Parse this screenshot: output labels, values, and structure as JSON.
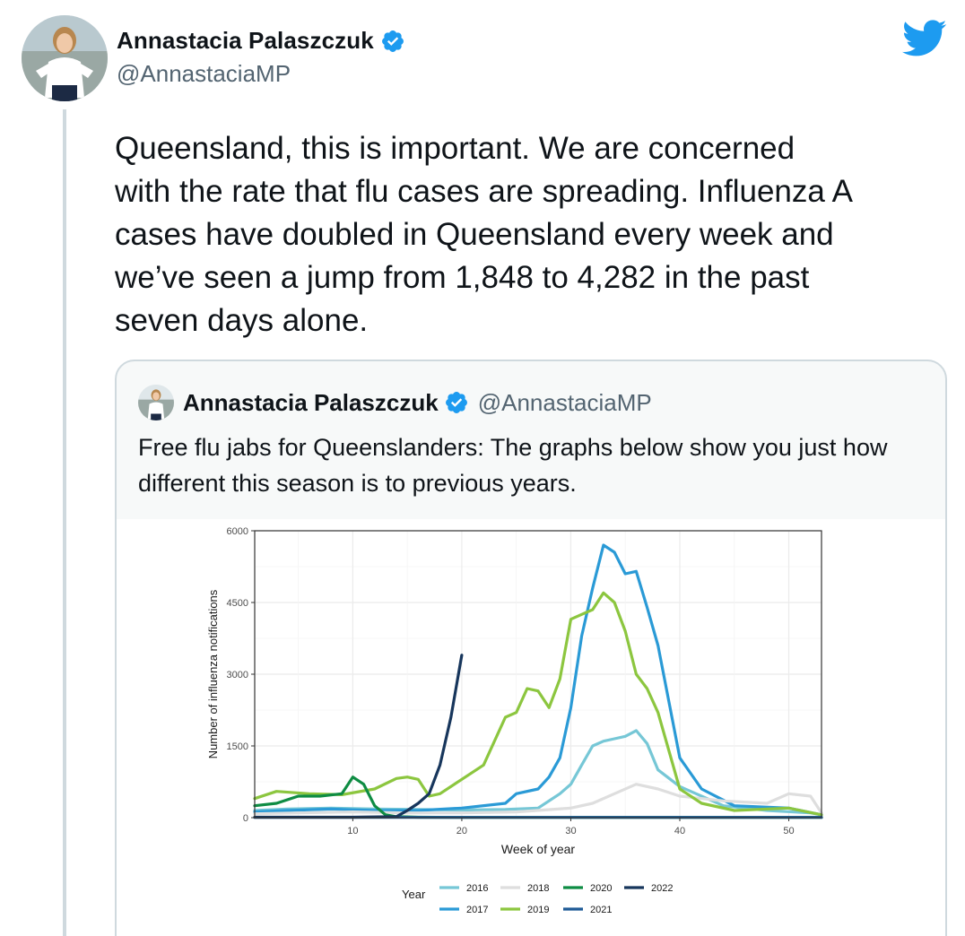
{
  "tweet": {
    "author_name": "Annastacia Palaszczuk",
    "handle": "@AnnastaciaMP",
    "text": "Queensland, this is important. We are concerned\nwith the rate that flu cases are spreading. Influenza A\ncases have doubled in Queensland every week and\nwe’ve seen a jump from 1,848 to 4,282 in the past\nseven days alone."
  },
  "quoted_tweet": {
    "author_name": "Annastacia Palaszczuk",
    "handle": "@AnnastaciaMP",
    "text": "Free flu jabs for Queenslanders: The graphs below show you just how different this season is to previous years."
  },
  "icons": {
    "brand": "twitter-bird-icon",
    "verified": "verified-badge-icon"
  },
  "colors": {
    "twitter_blue": "#1d9bf0",
    "text_primary": "#0f1419",
    "text_secondary": "#536471",
    "border": "#cfd9de"
  },
  "chart_data": {
    "type": "line",
    "xlabel": "Week of year",
    "ylabel": "Number of influenza notifications",
    "xlim": [
      1,
      53
    ],
    "ylim": [
      0,
      6000
    ],
    "xticks": [
      10,
      20,
      30,
      40,
      50
    ],
    "yticks": [
      0,
      1500,
      3000,
      4500,
      6000
    ],
    "legend_title": "Year",
    "legend_position": "bottom",
    "grid": true,
    "series": [
      {
        "name": "2016",
        "color": "#76c7d6",
        "x": [
          1,
          4,
          8,
          12,
          16,
          20,
          24,
          27,
          29,
          30,
          31,
          32,
          33,
          34,
          35,
          36,
          37,
          38,
          40,
          44,
          48,
          52,
          53
        ],
        "y": [
          150,
          180,
          200,
          180,
          170,
          160,
          170,
          200,
          500,
          700,
          1100,
          1500,
          1600,
          1650,
          1700,
          1820,
          1550,
          1000,
          650,
          250,
          150,
          100,
          60
        ]
      },
      {
        "name": "2017",
        "color": "#2a9ad6",
        "x": [
          1,
          4,
          8,
          12,
          16,
          20,
          24,
          25,
          27,
          28,
          29,
          30,
          31,
          32,
          33,
          34,
          35,
          36,
          37,
          38,
          40,
          42,
          45,
          50,
          53
        ],
        "y": [
          120,
          150,
          180,
          150,
          150,
          200,
          300,
          500,
          600,
          850,
          1250,
          2300,
          3800,
          4800,
          5700,
          5550,
          5100,
          5150,
          4400,
          3600,
          1250,
          600,
          250,
          200,
          60
        ]
      },
      {
        "name": "2018",
        "color": "#dedede",
        "x": [
          1,
          5,
          10,
          15,
          20,
          25,
          30,
          32,
          34,
          36,
          38,
          40,
          44,
          48,
          50,
          52,
          53
        ],
        "y": [
          80,
          100,
          120,
          100,
          100,
          120,
          200,
          300,
          500,
          700,
          600,
          450,
          350,
          300,
          500,
          450,
          100
        ]
      },
      {
        "name": "2019",
        "color": "#8cc63f",
        "x": [
          1,
          3,
          6,
          9,
          12,
          14,
          15,
          16,
          17,
          18,
          20,
          22,
          24,
          25,
          26,
          27,
          28,
          29,
          30,
          31,
          32,
          33,
          34,
          35,
          36,
          37,
          38,
          40,
          42,
          45,
          50,
          53
        ],
        "y": [
          400,
          550,
          500,
          480,
          600,
          820,
          850,
          800,
          450,
          500,
          800,
          1100,
          2100,
          2200,
          2700,
          2650,
          2300,
          2900,
          4150,
          4250,
          4350,
          4700,
          4500,
          3900,
          3000,
          2700,
          2200,
          600,
          300,
          150,
          200,
          60
        ]
      },
      {
        "name": "2020",
        "color": "#0e8c43",
        "x": [
          1,
          3,
          5,
          7,
          9,
          10,
          11,
          12,
          13,
          14,
          16,
          20,
          30,
          40,
          53
        ],
        "y": [
          250,
          300,
          450,
          450,
          500,
          850,
          700,
          250,
          60,
          20,
          10,
          5,
          5,
          5,
          5
        ]
      },
      {
        "name": "2021",
        "color": "#1f5a96",
        "x": [
          1,
          10,
          20,
          30,
          40,
          53
        ],
        "y": [
          5,
          5,
          5,
          5,
          5,
          5
        ]
      },
      {
        "name": "2022",
        "color": "#17365c",
        "x": [
          1,
          5,
          10,
          14,
          15,
          16,
          17,
          18,
          19,
          20
        ],
        "y": [
          10,
          10,
          10,
          20,
          150,
          300,
          500,
          1100,
          2100,
          3400
        ]
      }
    ]
  }
}
